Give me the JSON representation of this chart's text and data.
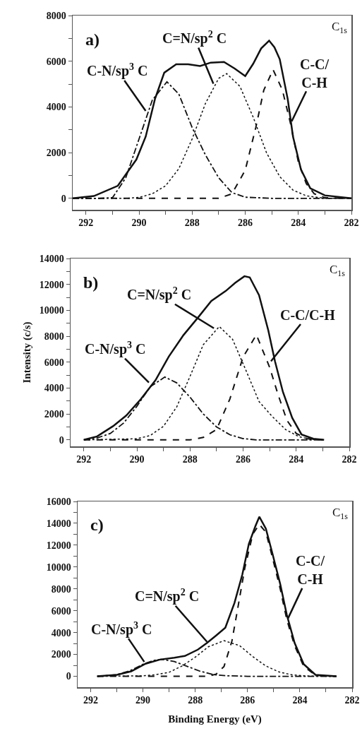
{
  "chart_data": [
    {
      "type": "line",
      "xlim": [
        292.5,
        282
      ],
      "ylim": [
        -500,
        8000
      ],
      "xticks": [
        292,
        {
          "value": 291,
          "label": null
        },
        290,
        {
          "value": 289,
          "label": null
        },
        288,
        {
          "value": 287,
          "label": null
        },
        286,
        {
          "value": 285,
          "label": null
        },
        284,
        {
          "value": 283,
          "label": null
        },
        282
      ],
      "yticks": [
        0,
        {
          "value": 1000,
          "label": null
        },
        2000,
        {
          "value": 3000,
          "label": null
        },
        4000,
        {
          "value": 5000,
          "label": null
        },
        6000,
        {
          "value": 7000,
          "label": null
        },
        8000
      ],
      "grid": false,
      "marker": "none",
      "annotations": [
        "a)",
        "C$_{1s}$",
        {
          "text": "C-N/sp$^{3}$ C",
          "x": 289.75,
          "y": 3830
        },
        {
          "text": "C=N/sp$^{2}$ C",
          "x": 287.2,
          "y": 5020
        },
        {
          "text": "C-C/\nC-H",
          "x": 284.25,
          "y": 3370
        }
      ],
      "series": [
        {
          "color": "#111111",
          "line_style": "solid",
          "x": [
            292.5,
            291.7,
            290.8,
            290.1,
            289.75,
            289.4,
            289.05,
            288.6,
            288.15,
            287.7,
            287.3,
            286.8,
            286.4,
            286.0,
            285.7,
            285.4,
            285.1,
            284.9,
            284.7,
            284.4,
            284.2,
            283.9,
            283.55,
            283.0,
            282.0
          ],
          "values": [
            0,
            100,
            550,
            1700,
            2700,
            4350,
            5500,
            5870,
            5870,
            5790,
            5940,
            5970,
            5680,
            5350,
            5890,
            6560,
            6900,
            6610,
            6090,
            4350,
            2700,
            1260,
            440,
            130,
            0
          ]
        },
        {
          "color": "#111111",
          "line_style": "dashdot",
          "x": [
            292.5,
            291.5,
            291,
            290.5,
            290,
            289.5,
            288.95,
            288.5,
            288,
            287.5,
            287,
            286.5,
            286,
            285,
            282
          ],
          "values": [
            0,
            0,
            30,
            900,
            2600,
            4300,
            5100,
            4560,
            3100,
            1900,
            900,
            250,
            50,
            0,
            0
          ]
        },
        {
          "color": "#111111",
          "line_style": "dotted",
          "x": [
            292.5,
            290.5,
            290,
            289.5,
            289,
            288.5,
            288,
            287.5,
            287,
            286.7,
            286.2,
            285.7,
            285.2,
            284.7,
            284.2,
            283.7,
            283,
            282
          ],
          "values": [
            0,
            0,
            40,
            200,
            550,
            1300,
            2600,
            4150,
            5250,
            5460,
            4900,
            3550,
            2000,
            950,
            360,
            110,
            0,
            0
          ]
        },
        {
          "color": "#111111",
          "line_style": "dashed",
          "x": [
            292.5,
            287,
            286.5,
            286,
            285.6,
            285.3,
            284.95,
            284.6,
            284.3,
            284,
            283.7,
            283.4,
            283,
            282
          ],
          "values": [
            0,
            0,
            200,
            1230,
            3110,
            4740,
            5630,
            4740,
            3300,
            1600,
            640,
            200,
            30,
            0
          ]
        }
      ]
    },
    {
      "type": "line",
      "xlim": [
        292.5,
        282
      ],
      "ylim": [
        -500,
        14000
      ],
      "ylabel": "Intensity (c/s)",
      "xticks": [
        292,
        {
          "value": 291,
          "label": null
        },
        290,
        {
          "value": 289,
          "label": null
        },
        288,
        {
          "value": 287,
          "label": null
        },
        286,
        {
          "value": 285,
          "label": null
        },
        284,
        {
          "value": 283,
          "label": null
        },
        282
      ],
      "yticks": [
        0,
        {
          "value": 1000,
          "label": null
        },
        2000,
        {
          "value": 3000,
          "label": null
        },
        4000,
        {
          "value": 5000,
          "label": null
        },
        6000,
        {
          "value": 7000,
          "label": null
        },
        8000,
        {
          "value": 9000,
          "label": null
        },
        10000,
        {
          "value": 11000,
          "label": null
        },
        12000,
        {
          "value": 13000,
          "label": null
        },
        14000
      ],
      "grid": false,
      "marker": "none",
      "annotations": [
        "b)",
        "C$_{1s}$",
        {
          "text": "C=N/sp$^{2}$ C",
          "x": 287.1,
          "y": 8620
        },
        {
          "text": "C-C/C-H",
          "x": 284.95,
          "y": 6070
        },
        {
          "text": "C-N/sp$^{3}$ C",
          "x": 289.55,
          "y": 4430
        }
      ],
      "series": [
        {
          "color": "#111111",
          "line_style": "solid",
          "x": [
            292,
            291.5,
            290.9,
            290.4,
            289.85,
            289.3,
            288.8,
            288.25,
            287.7,
            287.2,
            286.65,
            286.3,
            285.95,
            285.75,
            285.4,
            285.05,
            284.8,
            284.5,
            284.15,
            283.8,
            283.35,
            282.95
          ],
          "values": [
            0,
            270,
            1060,
            1880,
            3150,
            4610,
            6430,
            8080,
            9440,
            10720,
            11500,
            12120,
            12630,
            12540,
            11170,
            8440,
            6070,
            3700,
            1700,
            420,
            90,
            0
          ]
        },
        {
          "color": "#111111",
          "line_style": "dashdot",
          "x": [
            292,
            291.5,
            291,
            290.5,
            290,
            289.5,
            288.95,
            288.5,
            288,
            287.5,
            287,
            286.5,
            286,
            285.5,
            283
          ],
          "values": [
            0,
            150,
            500,
            1300,
            2600,
            4100,
            4850,
            4400,
            3300,
            2000,
            1000,
            400,
            100,
            0,
            0
          ]
        },
        {
          "color": "#111111",
          "line_style": "dotted",
          "x": [
            292,
            290,
            289.5,
            289,
            288.5,
            288,
            287.5,
            286.9,
            286.4,
            285.9,
            285.4,
            284.9,
            284.4,
            283.9,
            283.5,
            283
          ],
          "values": [
            0,
            90,
            340,
            1050,
            2550,
            4900,
            7350,
            8750,
            7770,
            5400,
            2960,
            1800,
            800,
            250,
            60,
            0
          ]
        },
        {
          "color": "#111111",
          "line_style": "dashed",
          "x": [
            292,
            288,
            287.5,
            287,
            286.5,
            286,
            285.5,
            285,
            284.7,
            284.35,
            284,
            283.6,
            283
          ],
          "values": [
            0,
            0,
            190,
            800,
            3150,
            6400,
            8110,
            5600,
            3600,
            1510,
            500,
            100,
            0
          ]
        }
      ]
    },
    {
      "type": "line",
      "xlim": [
        292.5,
        282
      ],
      "ylim": [
        -1000,
        16000
      ],
      "xlabel": "Binding Energy (eV)",
      "xticks": [
        292,
        {
          "value": 291,
          "label": null
        },
        290,
        {
          "value": 289,
          "label": null
        },
        288,
        {
          "value": 287,
          "label": null
        },
        286,
        {
          "value": 285,
          "label": null
        },
        284,
        {
          "value": 283,
          "label": null
        },
        282
      ],
      "yticks": [
        0,
        {
          "value": 1000,
          "label": null
        },
        2000,
        {
          "value": 3000,
          "label": null
        },
        4000,
        {
          "value": 5000,
          "label": null
        },
        6000,
        {
          "value": 7000,
          "label": null
        },
        8000,
        {
          "value": 9000,
          "label": null
        },
        10000,
        {
          "value": 11000,
          "label": null
        },
        12000,
        {
          "value": 13000,
          "label": null
        },
        14000,
        {
          "value": 15000,
          "label": null
        },
        16000
      ],
      "grid": false,
      "marker": "none",
      "annotations": [
        "c)",
        "C$_{1s}$",
        {
          "text": "C-C/\nC-H",
          "x": 284.45,
          "y": 5310
        },
        {
          "text": "C=N/sp$^{2}$ C",
          "x": 287.55,
          "y": 3150
        },
        {
          "text": "C-N/sp$^{3}$ C",
          "x": 289.95,
          "y": 1320
        }
      ],
      "series": [
        {
          "color": "#111111",
          "line_style": "solid",
          "x": [
            291.75,
            291.0,
            290.45,
            289.9,
            289.35,
            288.8,
            288.4,
            287.9,
            287.55,
            287.2,
            286.85,
            286.5,
            286.2,
            285.95,
            285.7,
            285.55,
            285.3,
            285.05,
            284.75,
            284.5,
            284.2,
            283.85,
            283.4,
            282.6
          ],
          "values": [
            0,
            130,
            450,
            1150,
            1530,
            1700,
            1860,
            2440,
            3050,
            3740,
            4450,
            6720,
            9310,
            12120,
            13740,
            14600,
            13520,
            11250,
            8440,
            5640,
            3050,
            1100,
            130,
            0
          ]
        },
        {
          "color": "#111111",
          "line_style": "dashdot",
          "x": [
            291.75,
            291,
            290.5,
            290,
            289.6,
            289.3,
            288.8,
            288.3,
            287.8,
            287.3,
            286.8,
            286,
            282.6
          ],
          "values": [
            0,
            150,
            500,
            1100,
            1450,
            1550,
            1350,
            900,
            450,
            150,
            50,
            0,
            0
          ]
        },
        {
          "color": "#111111",
          "line_style": "dotted",
          "x": [
            291.75,
            290,
            289.5,
            289,
            288.5,
            288,
            287.5,
            286.9,
            286.3,
            285.8,
            285.3,
            284.8,
            284.3,
            283.8,
            282.6
          ],
          "values": [
            0,
            40,
            150,
            370,
            950,
            1750,
            2700,
            3260,
            2800,
            1800,
            950,
            400,
            130,
            30,
            0
          ]
        },
        {
          "color": "#111111",
          "line_style": "dashed",
          "x": [
            291.75,
            287.5,
            287.2,
            286.9,
            286.6,
            286.45,
            286.1,
            285.8,
            285.55,
            285.3,
            285.05,
            284.75,
            284.5,
            284.2,
            283.85,
            283.4,
            282.6
          ],
          "values": [
            0,
            0,
            200,
            900,
            3200,
            5200,
            9960,
            13000,
            13900,
            13200,
            10900,
            8000,
            5200,
            2800,
            900,
            100,
            0
          ]
        }
      ]
    }
  ]
}
